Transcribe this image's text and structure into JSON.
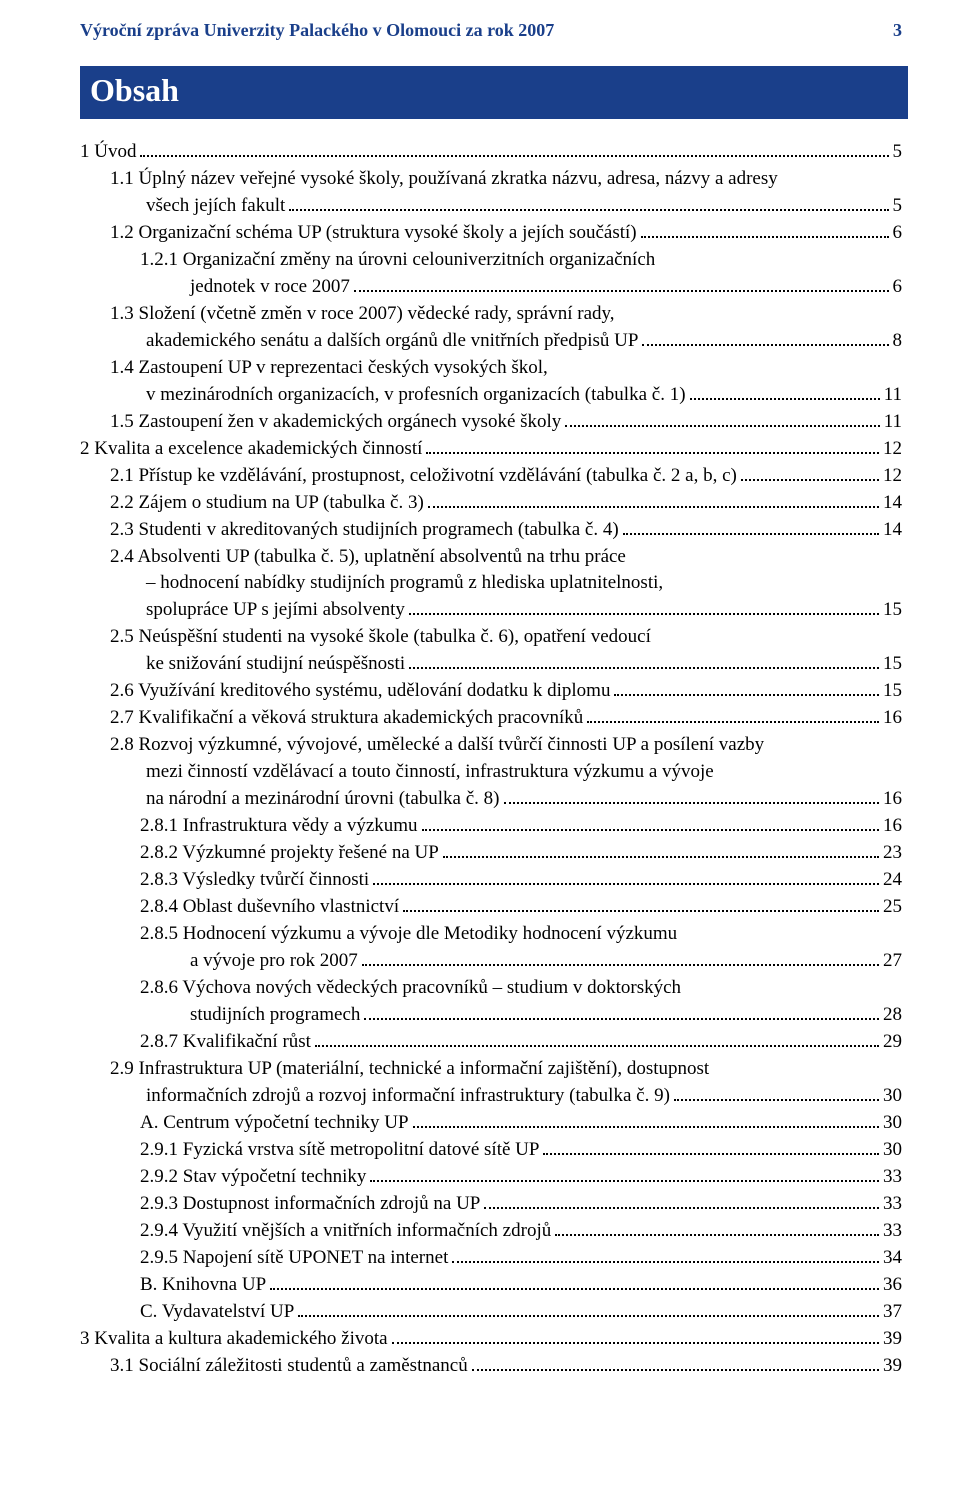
{
  "header": {
    "title": "Výroční zpráva Univerzity Palackého v Olomouci za rok 2007",
    "page_number": "3"
  },
  "section_title": "Obsah",
  "colors": {
    "header_text": "#1a3f8a",
    "section_bg": "#1a3f8a",
    "section_fg": "#ffffff",
    "body_text": "#000000",
    "background": "#ffffff"
  },
  "typography": {
    "body_fontsize_pt": 14,
    "header_fontsize_pt": 14,
    "section_title_fontsize_pt": 24,
    "font_family": "serif"
  },
  "toc": [
    {
      "indent": 0,
      "lines": [
        "1 Úvod"
      ],
      "page": "5"
    },
    {
      "indent": 1,
      "lines": [
        "1.1 Úplný název veřejné vysoké školy, používaná zkratka názvu, adresa, názvy a adresy",
        "všech jejích fakult"
      ],
      "page": "5"
    },
    {
      "indent": 1,
      "lines": [
        "1.2 Organizační schéma UP (struktura vysoké školy a jejích součástí)"
      ],
      "page": "6"
    },
    {
      "indent": 2,
      "lines": [
        "1.2.1 Organizační změny na úrovni celouniverzitních organizačních",
        "jednotek v roce 2007"
      ],
      "page": "6"
    },
    {
      "indent": 1,
      "lines": [
        "1.3 Složení (včetně změn v roce 2007) vědecké rady, správní rady,",
        "akademického senátu a dalších orgánů dle vnitřních předpisů UP"
      ],
      "page": "8"
    },
    {
      "indent": 1,
      "lines": [
        "1.4 Zastoupení UP v reprezentaci českých vysokých škol,",
        "v mezinárodních organizacích, v profesních organizacích (tabulka č. 1)"
      ],
      "page": "11"
    },
    {
      "indent": 1,
      "lines": [
        "1.5 Zastoupení žen v akademických orgánech vysoké školy"
      ],
      "page": "11"
    },
    {
      "indent": 0,
      "lines": [
        "2 Kvalita a excelence akademických činností"
      ],
      "page": "12"
    },
    {
      "indent": 1,
      "lines": [
        "2.1 Přístup ke vzdělávání, prostupnost, celoživotní vzdělávání (tabulka č. 2 a, b, c)"
      ],
      "page": "12"
    },
    {
      "indent": 1,
      "lines": [
        "2.2 Zájem o studium na UP (tabulka č. 3)"
      ],
      "page": "14"
    },
    {
      "indent": 1,
      "lines": [
        "2.3 Studenti v akreditovaných studijních programech (tabulka č. 4)"
      ],
      "page": "14"
    },
    {
      "indent": 1,
      "lines": [
        "2.4 Absolventi UP (tabulka č. 5), uplatnění absolventů na trhu práce",
        "– hodnocení nabídky studijních programů z hlediska uplatnitelnosti,",
        "spolupráce UP s jejími absolventy"
      ],
      "page": "15"
    },
    {
      "indent": 1,
      "lines": [
        "2.5 Neúspěšní studenti na vysoké škole (tabulka č. 6), opatření vedoucí",
        "ke snižování studijní neúspěšnosti"
      ],
      "page": "15"
    },
    {
      "indent": 1,
      "lines": [
        "2.6 Využívání kreditového systému, udělování dodatku k diplomu"
      ],
      "page": "15"
    },
    {
      "indent": 1,
      "lines": [
        "2.7 Kvalifikační a věková struktura akademických pracovníků"
      ],
      "page": "16"
    },
    {
      "indent": 1,
      "lines": [
        "2.8 Rozvoj výzkumné, vývojové, umělecké a další tvůrčí činnosti UP a posílení vazby",
        "mezi činností vzdělávací a touto činností, infrastruktura výzkumu a vývoje",
        "na národní a mezinárodní úrovni (tabulka č. 8)"
      ],
      "page": "16"
    },
    {
      "indent": 2,
      "lines": [
        "2.8.1 Infrastruktura vědy a výzkumu"
      ],
      "page": "16"
    },
    {
      "indent": 2,
      "lines": [
        "2.8.2 Výzkumné projekty řešené na UP"
      ],
      "page": "23"
    },
    {
      "indent": 2,
      "lines": [
        "2.8.3 Výsledky tvůrčí činnosti"
      ],
      "page": "24"
    },
    {
      "indent": 2,
      "lines": [
        "2.8.4 Oblast duševního vlastnictví"
      ],
      "page": "25"
    },
    {
      "indent": 2,
      "lines": [
        "2.8.5 Hodnocení výzkumu a vývoje dle Metodiky hodnocení výzkumu",
        "a vývoje pro rok 2007"
      ],
      "page": "27"
    },
    {
      "indent": 2,
      "lines": [
        "2.8.6 Výchova nových vědeckých pracovníků – studium v doktorských",
        "studijních programech"
      ],
      "page": "28"
    },
    {
      "indent": 2,
      "lines": [
        "2.8.7 Kvalifikační růst"
      ],
      "page": "29"
    },
    {
      "indent": 1,
      "lines": [
        "2.9 Infrastruktura UP (materiální, technické a informační zajištění), dostupnost",
        "informačních zdrojů a rozvoj informační infrastruktury (tabulka č. 9)"
      ],
      "page": "30"
    },
    {
      "indent": 2,
      "lines": [
        "A. Centrum výpočetní techniky UP"
      ],
      "page": "30"
    },
    {
      "indent": 2,
      "lines": [
        "2.9.1 Fyzická vrstva sítě metropolitní datové sítě UP"
      ],
      "page": "30"
    },
    {
      "indent": 2,
      "lines": [
        "2.9.2 Stav výpočetní techniky"
      ],
      "page": "33"
    },
    {
      "indent": 2,
      "lines": [
        "2.9.3 Dostupnost informačních zdrojů na UP"
      ],
      "page": "33"
    },
    {
      "indent": 2,
      "lines": [
        "2.9.4 Využití vnějších a vnitřních informačních zdrojů"
      ],
      "page": "33"
    },
    {
      "indent": 2,
      "lines": [
        "2.9.5 Napojení sítě UPONET na internet"
      ],
      "page": "34"
    },
    {
      "indent": 2,
      "lines": [
        "B. Knihovna UP"
      ],
      "page": "36"
    },
    {
      "indent": 2,
      "lines": [
        "C. Vydavatelství UP"
      ],
      "page": "37"
    },
    {
      "indent": 0,
      "lines": [
        "3 Kvalita a kultura akademického života"
      ],
      "page": "39"
    },
    {
      "indent": 1,
      "lines": [
        "3.1 Sociální záležitosti studentů a zaměstnanců"
      ],
      "page": "39"
    }
  ]
}
